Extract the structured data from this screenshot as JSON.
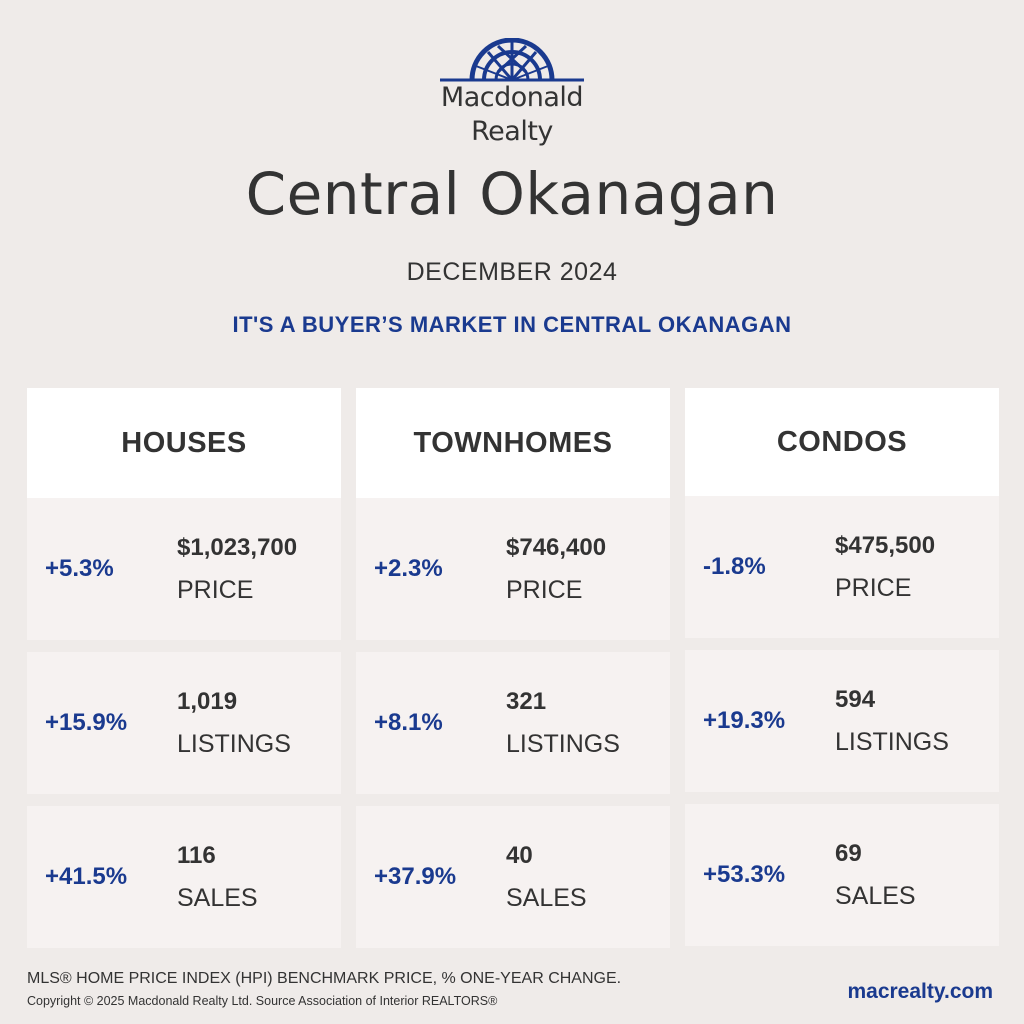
{
  "brand": {
    "name_line1": "Macdonald",
    "name_line2": "Realty",
    "color": "#1a3a8f"
  },
  "title": "Central Okanagan",
  "subtitle": "DECEMBER 2024",
  "headline": "IT'S A BUYER’S MARKET IN CENTRAL OKANAGAN",
  "columns": [
    {
      "name": "HOUSES",
      "stats": [
        {
          "change": "+5.3%",
          "value": "$1,023,700",
          "label": "PRICE"
        },
        {
          "change": "+15.9%",
          "value": "1,019",
          "label": "LISTINGS"
        },
        {
          "change": "+41.5%",
          "value": "116",
          "label": "SALES"
        }
      ]
    },
    {
      "name": "TOWNHOMES",
      "stats": [
        {
          "change": "+2.3%",
          "value": "$746,400",
          "label": "PRICE"
        },
        {
          "change": "+8.1%",
          "value": "321",
          "label": "LISTINGS"
        },
        {
          "change": "+37.9%",
          "value": "40",
          "label": "SALES"
        }
      ]
    },
    {
      "name": "CONDOS",
      "stats": [
        {
          "change": "-1.8%",
          "value": "$475,500",
          "label": "PRICE"
        },
        {
          "change": "+19.3%",
          "value": "594",
          "label": "LISTINGS"
        },
        {
          "change": "+53.3%",
          "value": "69",
          "label": "SALES"
        }
      ]
    }
  ],
  "footer": {
    "note": "MLS® HOME PRICE INDEX (HPI) BENCHMARK PRICE, % ONE-YEAR CHANGE.",
    "copyright": "Copyright © 2025 Macdonald Realty Ltd. Source Association of Interior REALTORS®",
    "url": "macrealty.com"
  }
}
